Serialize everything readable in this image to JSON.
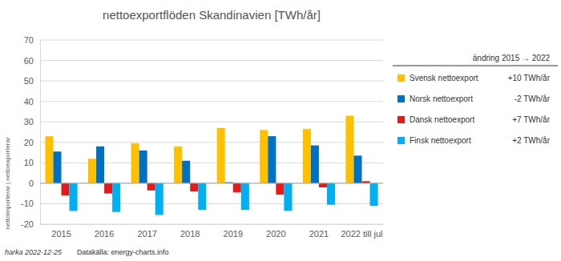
{
  "chart_data": {
    "type": "bar",
    "title": "nettoexportflöden Skandinavien [TWh/år]",
    "y_label": "nettoimporterar | nettoexporterar",
    "categories": [
      "2015",
      "2016",
      "2017",
      "2018",
      "2019",
      "2020",
      "2021",
      "2022 till jul"
    ],
    "series": [
      {
        "name": "Svensk nettoexport",
        "color": "#ffc000",
        "change": "+10 TWh/år",
        "values": [
          23,
          12,
          19.5,
          18,
          27,
          26,
          26.5,
          33
        ]
      },
      {
        "name": "Norsk nettoexport",
        "color": "#0070c0",
        "change": "-2 TWh/år",
        "values": [
          15.5,
          18,
          16,
          11,
          0.5,
          23,
          18.5,
          13.5
        ]
      },
      {
        "name": "Dansk nettoexport",
        "color": "#e41a1c",
        "change": "+7 TWh/år",
        "values": [
          -6,
          -5,
          -3.5,
          -4,
          -4.5,
          -5.5,
          -2,
          1
        ]
      },
      {
        "name": "Finsk nettoexport",
        "color": "#00b0f0",
        "change": "+2 TWh/år",
        "values": [
          -13.5,
          -14,
          -15.5,
          -13,
          -13,
          -13.5,
          -10.5,
          -11
        ]
      }
    ],
    "legend_title": "ändring 2015 → 2022",
    "ylim": [
      -20,
      70
    ],
    "yticks": [
      -20,
      -10,
      0,
      10,
      20,
      30,
      40,
      50,
      60,
      70
    ],
    "grid": true,
    "legend": "right",
    "footer": "harka 2022-12-25",
    "source": "Datakälla: energy-charts.info"
  }
}
